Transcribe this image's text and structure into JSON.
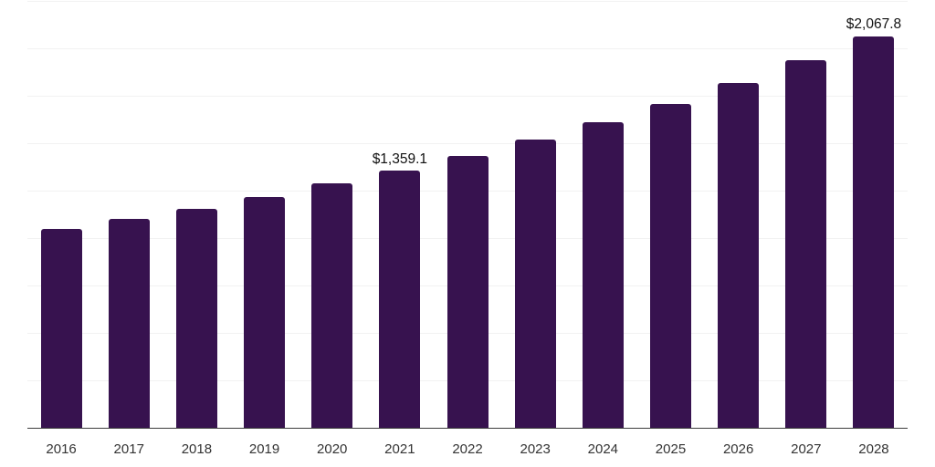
{
  "chart_data": {
    "type": "bar",
    "title": "",
    "xlabel": "",
    "ylabel": "",
    "categories": [
      "2016",
      "2017",
      "2018",
      "2019",
      "2020",
      "2021",
      "2022",
      "2023",
      "2024",
      "2025",
      "2026",
      "2027",
      "2028"
    ],
    "values": [
      1053,
      1106,
      1160,
      1220,
      1293,
      1359.1,
      1437,
      1525,
      1616,
      1712,
      1824,
      1940,
      2067.8
    ],
    "annotations": [
      {
        "category": "2021",
        "label": "$1,359.1"
      },
      {
        "category": "2028",
        "label": "$2,067.8"
      }
    ],
    "ylim": [
      0,
      2250
    ],
    "grid_step": 250,
    "grid": true,
    "legend_position": "none",
    "value_prefix": "$"
  },
  "colors": {
    "bar": "#37124F",
    "gridline": "#F2F2F2",
    "axis_line": "#3C3C3C",
    "tick_label": "#333333",
    "data_label": "#101010",
    "background": "#FFFFFF"
  }
}
